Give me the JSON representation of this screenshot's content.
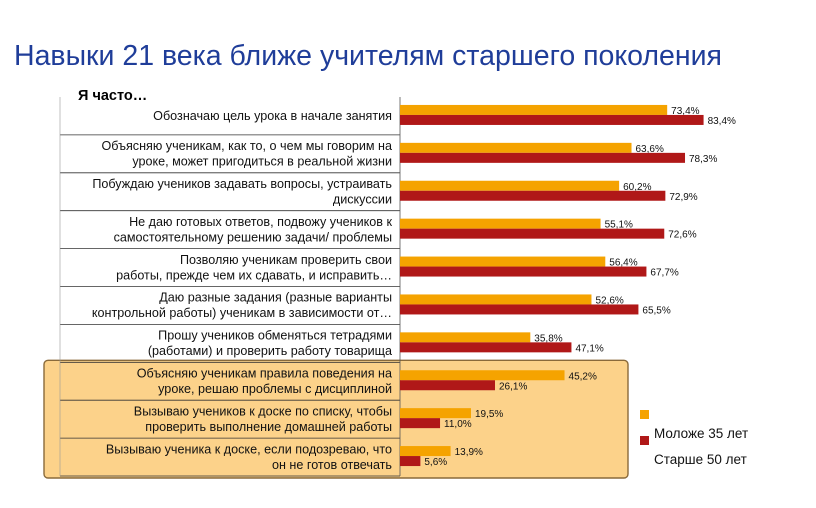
{
  "title": "Навыки 21 века ближе учителям старшего поколения",
  "prefix": "Я часто…",
  "chart_data": {
    "type": "bar",
    "orientation": "horizontal",
    "categories": [
      [
        "Обозначаю цель урока в начале занятия"
      ],
      [
        "Объясняю ученикам, как то, о чем мы говорим на",
        "уроке, может пригодиться в реальной жизни"
      ],
      [
        "Побуждаю учеников задавать вопросы, устраивать",
        "дискуссии"
      ],
      [
        "Не даю готовых ответов, подвожу учеников к",
        "самостоятельному решению задачи/ проблемы"
      ],
      [
        "Позволяю ученикам проверить свои",
        "работы, прежде чем их сдавать, и исправить…"
      ],
      [
        "Даю разные задания (разные варианты",
        "контрольной работы) ученикам в зависимости от…"
      ],
      [
        "Прошу учеников обменяться тетрадями",
        "(работами) и проверить работу товарища"
      ],
      [
        "Объясняю ученикам правила поведения на",
        "уроке, решаю проблемы с дисциплиной"
      ],
      [
        "Вызываю учеников к доске по списку, чтобы",
        "проверить выполнение домашней работы"
      ],
      [
        "Вызываю ученика к доске, если подозреваю, что",
        "он не готов отвечать"
      ]
    ],
    "series": [
      {
        "name": "Моложе 35 лет",
        "color": "#f5a300",
        "values": [
          73.4,
          63.6,
          60.2,
          55.1,
          56.4,
          52.6,
          35.8,
          45.2,
          19.5,
          13.9
        ],
        "labels": [
          "73,4%",
          "63,6%",
          "60,2%",
          "55,1%",
          "56,4%",
          "52,6%",
          "35,8%",
          "45,2%",
          "19,5%",
          "13,9%"
        ]
      },
      {
        "name": "Старше 50 лет",
        "color": "#b01818",
        "values": [
          83.4,
          78.3,
          72.9,
          72.6,
          67.7,
          65.5,
          47.1,
          26.1,
          11.0,
          5.6
        ],
        "labels": [
          "83,4%",
          "78,3%",
          "72,9%",
          "72,6%",
          "67,7%",
          "65,5%",
          "47,1%",
          "26,1%",
          "11,0%",
          "5,6%"
        ]
      }
    ],
    "xlim": [
      0,
      100
    ],
    "legend_position": "right",
    "highlight_rows": [
      7,
      8,
      9
    ],
    "highlight_color": "#fcd28a"
  }
}
